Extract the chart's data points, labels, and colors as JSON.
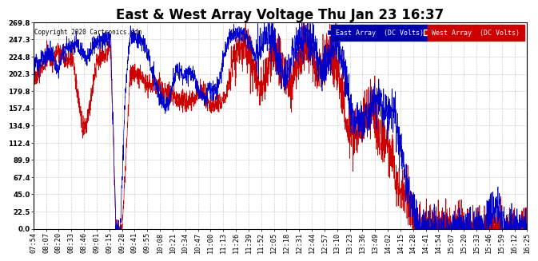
{
  "title": "East & West Array Voltage Thu Jan 23 16:37",
  "copyright": "Copyright 2020 Cartronics.com",
  "legend_east": "East Array  (DC Volts)",
  "legend_west": "West Array  (DC Volts)",
  "east_color": "#0000cc",
  "west_color": "#cc0000",
  "legend_east_bg": "#0000aa",
  "legend_west_bg": "#cc0000",
  "yticks": [
    0.0,
    22.5,
    45.0,
    67.4,
    89.9,
    112.4,
    134.9,
    157.4,
    179.8,
    202.3,
    224.8,
    247.3,
    269.8
  ],
  "ymin": 0.0,
  "ymax": 269.8,
  "xtick_labels": [
    "07:54",
    "08:07",
    "08:20",
    "08:33",
    "08:46",
    "09:01",
    "09:15",
    "09:28",
    "09:41",
    "09:55",
    "10:08",
    "10:21",
    "10:34",
    "10:47",
    "11:00",
    "11:13",
    "11:26",
    "11:39",
    "11:52",
    "12:05",
    "12:18",
    "12:31",
    "12:44",
    "12:57",
    "13:10",
    "13:23",
    "13:36",
    "13:49",
    "14:02",
    "14:15",
    "14:28",
    "14:41",
    "14:54",
    "15:07",
    "15:20",
    "15:33",
    "15:46",
    "15:59",
    "16:12",
    "16:25"
  ],
  "background_color": "#ffffff",
  "grid_color": "#aaaaaa",
  "title_fontsize": 12,
  "tick_fontsize": 6.2,
  "label_fontsize": 7
}
